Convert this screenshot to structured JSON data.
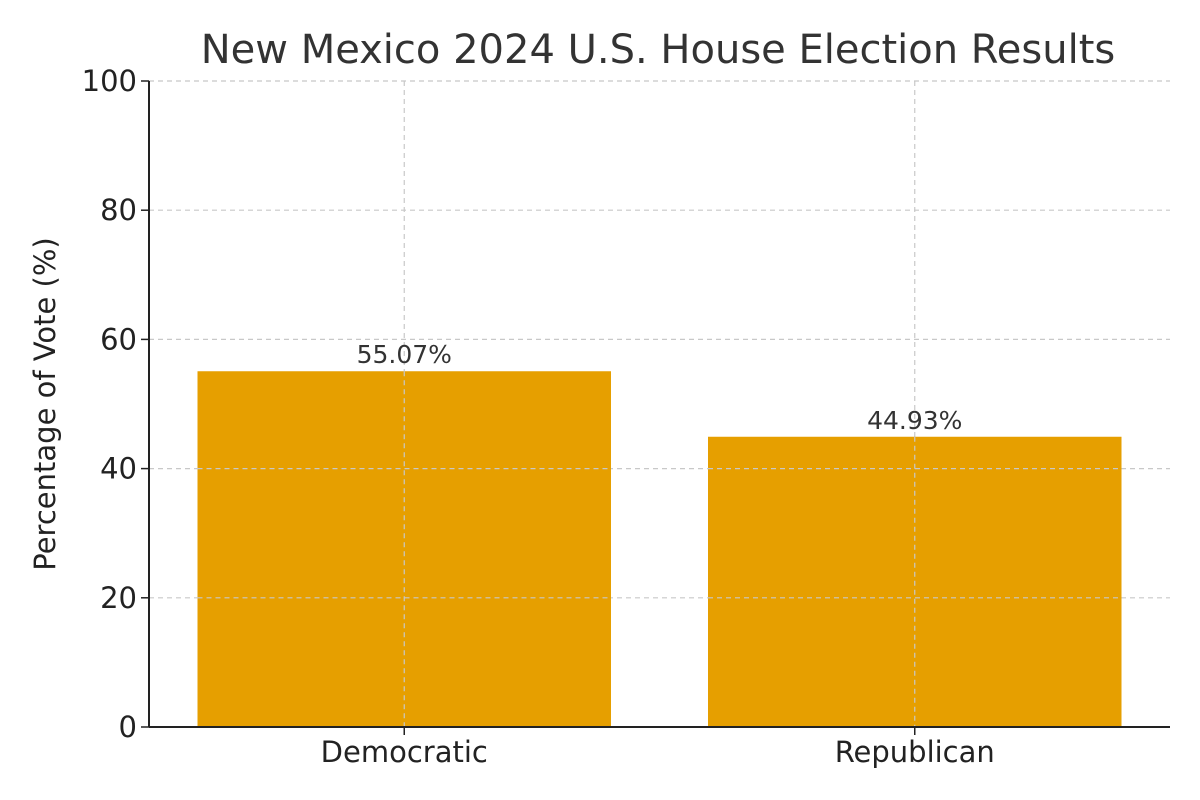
{
  "chart_data": {
    "type": "bar",
    "title": "New Mexico 2024 U.S. House Election Results",
    "xlabel": "",
    "ylabel": "Percentage of Vote (%)",
    "ylim": [
      0,
      100
    ],
    "yticks": [
      0,
      20,
      40,
      60,
      80,
      100
    ],
    "categories": [
      "Democratic",
      "Republican"
    ],
    "values": [
      55.07,
      44.93
    ],
    "data_labels": [
      "55.07%",
      "44.93%"
    ],
    "bar_color": "#E69F00",
    "grid": true
  }
}
